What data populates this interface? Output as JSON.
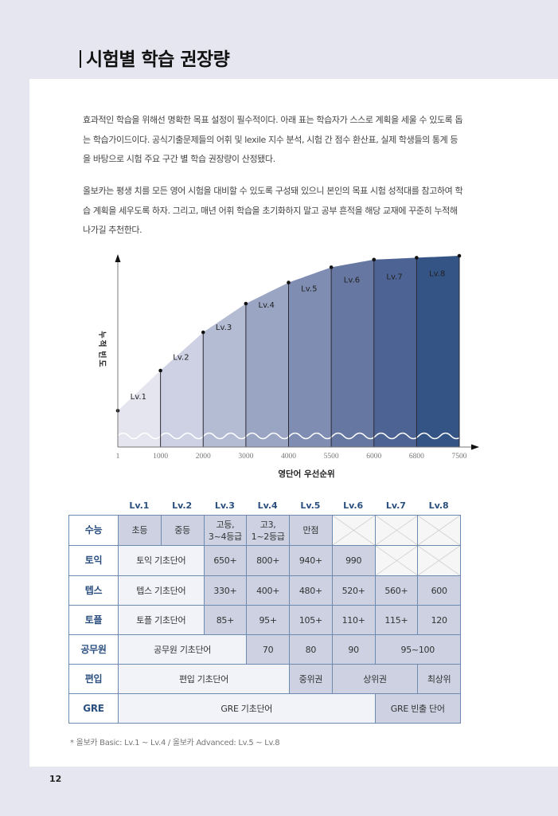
{
  "header": {
    "title": "시험별 학습 권장량"
  },
  "intro": {
    "paragraph1": "효과적인 학습을 위해선 명확한 목표 설정이 필수적이다. 아래 표는 학습자가 스스로 계획을 세울 수 있도록 돕는 학습가이드이다. 공식기출문제들의 어휘 및 lexile 지수 분석, 시험 간 점수 환산표, 실제 학생들의 통계 등을 바탕으로 시험 주요 구간 별 학습 권장량이 산정됐다.",
    "paragraph2": "올보카는 평생 치를 모든 영어 시험을 대비할 수 있도록 구성돼 있으니 본인의 목표 시험 성적대를 참고하여 학습 계획을 세우도록 하자. 그리고, 매년 어휘 학습을 초기화하지 말고 공부 흔적을 해당 교재에 꾸준히 누적해나가길 추천한다."
  },
  "chart_data": {
    "type": "area",
    "title": "",
    "xlabel": "영단어 우선순위",
    "ylabel": "누적 빈도",
    "x_ticks": [
      "1",
      "1000",
      "2000",
      "3000",
      "4000",
      "5500",
      "6000",
      "6800",
      "7500"
    ],
    "levels": [
      "Lv.1",
      "Lv.2",
      "Lv.3",
      "Lv.4",
      "Lv.5",
      "Lv.6",
      "Lv.7",
      "Lv.8"
    ],
    "relative_height_at_boundary": [
      0.19,
      0.4,
      0.6,
      0.75,
      0.86,
      0.94,
      0.98,
      0.99,
      1.0
    ],
    "band_colors": [
      "#e4e5ef",
      "#cdd1e3",
      "#b4bcd4",
      "#9aa5c4",
      "#7f8db3",
      "#6677a2",
      "#4d6393",
      "#345486"
    ],
    "grid": false,
    "legend": "none",
    "axis_break": true
  },
  "table": {
    "level_headers": [
      "Lv.1",
      "Lv.2",
      "Lv.3",
      "Lv.4",
      "Lv.5",
      "Lv.6",
      "Lv.7",
      "Lv.8"
    ],
    "rows": [
      {
        "exam": "수능",
        "cells": [
          {
            "text": "초등",
            "span": 1,
            "style": "dark"
          },
          {
            "text": "중등",
            "span": 1,
            "style": "dark"
          },
          {
            "text": "고등,\n3~4등급",
            "span": 1,
            "style": "dark"
          },
          {
            "text": "고3,\n1~2등급",
            "span": 1,
            "style": "dark"
          },
          {
            "text": "만점",
            "span": 1,
            "style": "dark"
          },
          {
            "text": "",
            "span": 1,
            "style": "x"
          },
          {
            "text": "",
            "span": 1,
            "style": "x"
          },
          {
            "text": "",
            "span": 1,
            "style": "x"
          }
        ]
      },
      {
        "exam": "토익",
        "cells": [
          {
            "text": "토익 기초단어",
            "span": 2,
            "style": "light"
          },
          {
            "text": "650+",
            "span": 1,
            "style": "dark"
          },
          {
            "text": "800+",
            "span": 1,
            "style": "dark"
          },
          {
            "text": "940+",
            "span": 1,
            "style": "dark"
          },
          {
            "text": "990",
            "span": 1,
            "style": "dark"
          },
          {
            "text": "",
            "span": 1,
            "style": "x"
          },
          {
            "text": "",
            "span": 1,
            "style": "x"
          }
        ]
      },
      {
        "exam": "텝스",
        "cells": [
          {
            "text": "텝스 기초단어",
            "span": 2,
            "style": "light"
          },
          {
            "text": "330+",
            "span": 1,
            "style": "dark"
          },
          {
            "text": "400+",
            "span": 1,
            "style": "dark"
          },
          {
            "text": "480+",
            "span": 1,
            "style": "dark"
          },
          {
            "text": "520+",
            "span": 1,
            "style": "dark"
          },
          {
            "text": "560+",
            "span": 1,
            "style": "dark"
          },
          {
            "text": "600",
            "span": 1,
            "style": "dark"
          }
        ]
      },
      {
        "exam": "토플",
        "cells": [
          {
            "text": "토플 기초단어",
            "span": 2,
            "style": "light"
          },
          {
            "text": "85+",
            "span": 1,
            "style": "dark"
          },
          {
            "text": "95+",
            "span": 1,
            "style": "dark"
          },
          {
            "text": "105+",
            "span": 1,
            "style": "dark"
          },
          {
            "text": "110+",
            "span": 1,
            "style": "dark"
          },
          {
            "text": "115+",
            "span": 1,
            "style": "dark"
          },
          {
            "text": "120",
            "span": 1,
            "style": "dark"
          }
        ]
      },
      {
        "exam": "공무원",
        "cells": [
          {
            "text": "공무원 기초단어",
            "span": 3,
            "style": "light"
          },
          {
            "text": "70",
            "span": 1,
            "style": "dark"
          },
          {
            "text": "80",
            "span": 1,
            "style": "dark"
          },
          {
            "text": "90",
            "span": 1,
            "style": "dark"
          },
          {
            "text": "95~100",
            "span": 2,
            "style": "dark"
          }
        ]
      },
      {
        "exam": "편입",
        "cells": [
          {
            "text": "편입 기초단어",
            "span": 4,
            "style": "light"
          },
          {
            "text": "중위권",
            "span": 1,
            "style": "dark"
          },
          {
            "text": "상위권",
            "span": 2,
            "style": "dark"
          },
          {
            "text": "최상위",
            "span": 1,
            "style": "dark"
          }
        ]
      },
      {
        "exam": "GRE",
        "cells": [
          {
            "text": "GRE 기초단어",
            "span": 6,
            "style": "light"
          },
          {
            "text": "GRE 빈출 단어",
            "span": 2,
            "style": "dark"
          }
        ]
      }
    ]
  },
  "footnote": "* 올보카 Basic: Lv.1 ~ Lv.4 / 올보카 Advanced: Lv.5 ~ Lv.8",
  "page_number": "12"
}
